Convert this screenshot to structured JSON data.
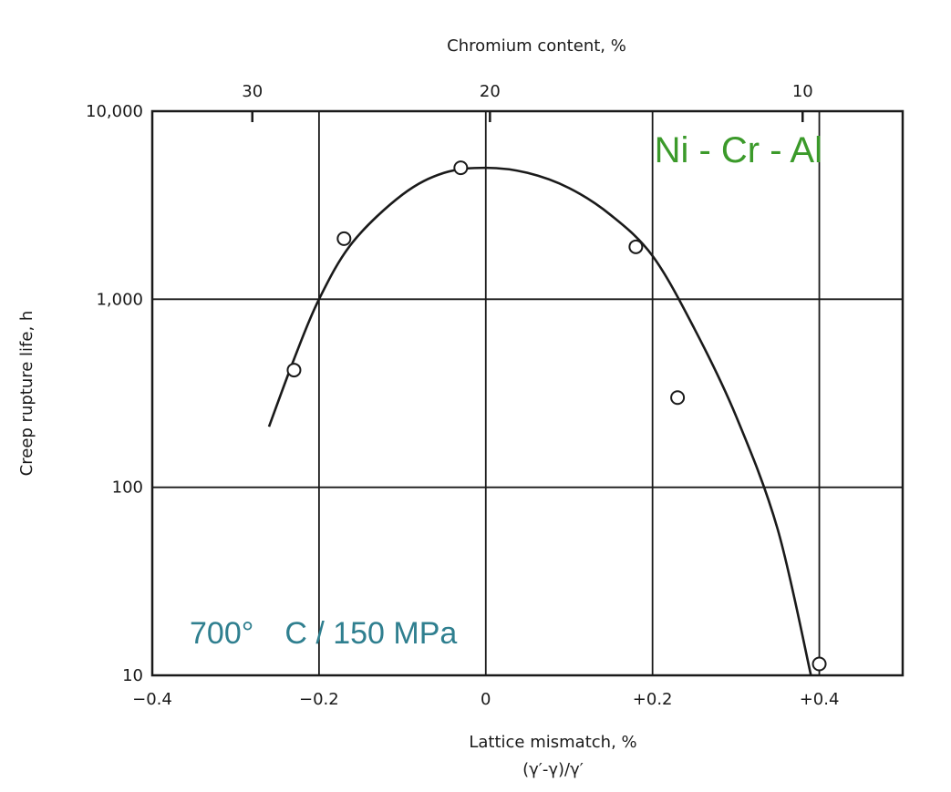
{
  "chart_data": {
    "type": "scatter",
    "x_axis": {
      "label": "Lattice mismatch, %",
      "sublabel": "(γ′-γ)/γ′",
      "range": [
        -0.4,
        0.5
      ],
      "ticks": [
        {
          "value": -0.4,
          "label": "−0.4"
        },
        {
          "value": -0.2,
          "label": "−0.2"
        },
        {
          "value": 0,
          "label": "0"
        },
        {
          "value": 0.2,
          "label": "+0.2"
        },
        {
          "value": 0.4,
          "label": "+0.4"
        }
      ]
    },
    "top_axis": {
      "label": "Chromium content, %",
      "ticks": [
        {
          "mismatch": -0.28,
          "label": "30"
        },
        {
          "mismatch": 0.005,
          "label": "20"
        },
        {
          "mismatch": 0.38,
          "label": "10"
        }
      ]
    },
    "y_axis": {
      "label": "Creep rupture life, h",
      "scale": "log",
      "range": [
        10,
        10000
      ],
      "ticks": [
        {
          "value": 10,
          "label": "10"
        },
        {
          "value": 100,
          "label": "100"
        },
        {
          "value": 1000,
          "label": "1,000"
        },
        {
          "value": 10000,
          "label": "10,000"
        }
      ]
    },
    "grid": true,
    "series": [
      {
        "points": [
          {
            "x": -0.23,
            "y": 420
          },
          {
            "x": -0.17,
            "y": 2100
          },
          {
            "x": -0.03,
            "y": 5000
          },
          {
            "x": 0.18,
            "y": 1900
          },
          {
            "x": 0.23,
            "y": 300
          },
          {
            "x": 0.4,
            "y": 11.5
          }
        ],
        "fit_curve": [
          {
            "x": -0.26,
            "y": 210
          },
          {
            "x": -0.23,
            "y": 480
          },
          {
            "x": -0.2,
            "y": 1000
          },
          {
            "x": -0.16,
            "y": 2000
          },
          {
            "x": -0.1,
            "y": 3600
          },
          {
            "x": -0.05,
            "y": 4700
          },
          {
            "x": 0.0,
            "y": 5000
          },
          {
            "x": 0.05,
            "y": 4700
          },
          {
            "x": 0.1,
            "y": 3900
          },
          {
            "x": 0.15,
            "y": 2800
          },
          {
            "x": 0.2,
            "y": 1700
          },
          {
            "x": 0.25,
            "y": 700
          },
          {
            "x": 0.3,
            "y": 240
          },
          {
            "x": 0.35,
            "y": 60
          },
          {
            "x": 0.39,
            "y": 10
          }
        ]
      }
    ],
    "annotations": [
      {
        "text": "Ni - Cr - Al",
        "color": "#3b9a2a",
        "anchor": "top-right"
      },
      {
        "text": "700°　C / 150 MPa",
        "color": "#2f7f8f",
        "anchor": "bottom-left"
      }
    ]
  }
}
